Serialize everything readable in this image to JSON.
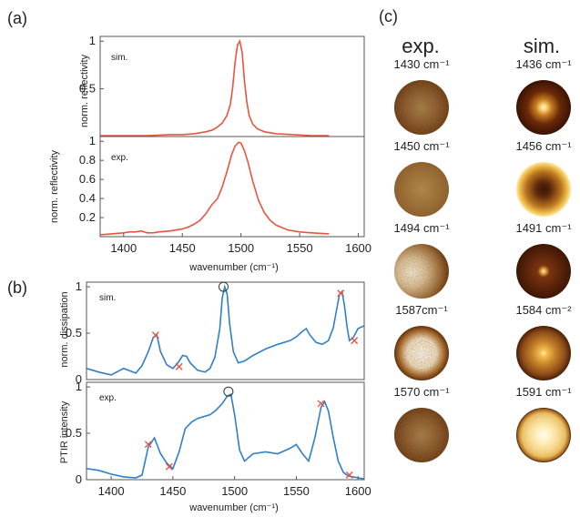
{
  "panel_labels": {
    "a": "(a)",
    "b": "(b)",
    "c": "(c)"
  },
  "colors": {
    "reflectivity": "#e8553f",
    "dissipation": "#2f7fc9",
    "marker": "#e8553f",
    "peak_marker": "#333333"
  },
  "chart_data": [
    {
      "id": "a-sim",
      "type": "line",
      "panel": "(a)",
      "series_label": "sim.",
      "ylabel": "norm. reflectivity",
      "xlim": [
        1380,
        1605
      ],
      "ylim": [
        0,
        1.05
      ],
      "yticks": [
        "0.5",
        "1"
      ],
      "yticks_values": [
        0.5,
        1
      ],
      "x": [
        1380,
        1400,
        1420,
        1440,
        1450,
        1460,
        1470,
        1476,
        1480,
        1484,
        1488,
        1491,
        1493,
        1495,
        1497,
        1499,
        1501,
        1503,
        1505,
        1507,
        1510,
        1514,
        1520,
        1530,
        1545,
        1560,
        1575
      ],
      "y": [
        0.01,
        0.01,
        0.01,
        0.02,
        0.02,
        0.03,
        0.05,
        0.07,
        0.1,
        0.14,
        0.22,
        0.34,
        0.52,
        0.78,
        0.96,
        1.0,
        0.88,
        0.58,
        0.36,
        0.22,
        0.13,
        0.08,
        0.05,
        0.03,
        0.02,
        0.01,
        0.01
      ]
    },
    {
      "id": "a-exp",
      "type": "line",
      "panel": "(a)",
      "series_label": "exp.",
      "ylabel": "norm. reflectivity",
      "xlabel": "wavenumber (cm⁻¹)",
      "xlim": [
        1380,
        1605
      ],
      "ylim": [
        0,
        1.05
      ],
      "xticks": [
        "1400",
        "1450",
        "1500",
        "1550",
        "1600"
      ],
      "xticks_values": [
        1400,
        1450,
        1500,
        1550,
        1600
      ],
      "yticks": [
        "0.2",
        "0.4",
        "0.6",
        "0.8",
        "1"
      ],
      "yticks_values": [
        0.2,
        0.4,
        0.6,
        0.8,
        1
      ],
      "x": [
        1380,
        1390,
        1400,
        1405,
        1410,
        1415,
        1420,
        1425,
        1430,
        1440,
        1450,
        1455,
        1460,
        1465,
        1470,
        1475,
        1480,
        1484,
        1488,
        1492,
        1495,
        1498,
        1500,
        1503,
        1506,
        1510,
        1515,
        1520,
        1525,
        1530,
        1540,
        1550,
        1560,
        1575
      ],
      "y": [
        0.02,
        0.03,
        0.04,
        0.05,
        0.05,
        0.06,
        0.04,
        0.04,
        0.05,
        0.06,
        0.08,
        0.1,
        0.13,
        0.17,
        0.24,
        0.33,
        0.4,
        0.52,
        0.68,
        0.86,
        0.95,
        0.99,
        0.98,
        0.9,
        0.78,
        0.58,
        0.38,
        0.25,
        0.17,
        0.12,
        0.07,
        0.05,
        0.04,
        0.03
      ]
    },
    {
      "id": "b-sim",
      "type": "line",
      "panel": "(b)",
      "series_label": "sim.",
      "ylabel": "norm. dissipation",
      "xlim": [
        1380,
        1605
      ],
      "ylim": [
        0,
        1.05
      ],
      "yticks": [
        "0",
        "0.5",
        "1"
      ],
      "yticks_values": [
        0,
        0.5,
        1
      ],
      "x": [
        1380,
        1390,
        1400,
        1410,
        1420,
        1425,
        1430,
        1434,
        1437,
        1440,
        1445,
        1450,
        1454,
        1458,
        1461,
        1464,
        1470,
        1476,
        1480,
        1484,
        1488,
        1490,
        1492,
        1494,
        1496,
        1499,
        1503,
        1508,
        1515,
        1525,
        1535,
        1545,
        1550,
        1555,
        1558,
        1561,
        1566,
        1571,
        1576,
        1580,
        1583,
        1585,
        1587,
        1589,
        1591,
        1593,
        1596,
        1600,
        1605
      ],
      "y": [
        0.12,
        0.08,
        0.05,
        0.12,
        0.07,
        0.15,
        0.3,
        0.45,
        0.48,
        0.3,
        0.16,
        0.12,
        0.18,
        0.26,
        0.25,
        0.18,
        0.1,
        0.08,
        0.12,
        0.24,
        0.55,
        0.88,
        1.0,
        0.92,
        0.6,
        0.3,
        0.18,
        0.2,
        0.26,
        0.33,
        0.38,
        0.42,
        0.46,
        0.52,
        0.55,
        0.48,
        0.4,
        0.38,
        0.42,
        0.56,
        0.78,
        0.92,
        0.95,
        0.8,
        0.58,
        0.42,
        0.45,
        0.55,
        0.58
      ],
      "markers_x": [
        1436,
        1455,
        1586,
        1597
      ],
      "markers_y": [
        0.48,
        0.14,
        0.93,
        0.42
      ],
      "peak_x": 1491,
      "peak_y": 1.0
    },
    {
      "id": "b-exp",
      "type": "line",
      "panel": "(b)",
      "series_label": "exp.",
      "ylabel": "PTIR intensity",
      "xlabel": "wavenumber (cm⁻¹)",
      "xlim": [
        1380,
        1605
      ],
      "ylim": [
        0,
        1.05
      ],
      "xticks": [
        "1400",
        "1450",
        "1500",
        "1550",
        "1600"
      ],
      "xticks_values": [
        1400,
        1450,
        1500,
        1550,
        1600
      ],
      "yticks": [
        "0",
        "0.5",
        "1"
      ],
      "yticks_values": [
        0,
        0.5,
        1
      ],
      "x": [
        1380,
        1390,
        1400,
        1410,
        1420,
        1425,
        1430,
        1435,
        1440,
        1445,
        1450,
        1455,
        1460,
        1465,
        1470,
        1475,
        1480,
        1485,
        1490,
        1494,
        1497,
        1500,
        1504,
        1508,
        1515,
        1525,
        1535,
        1545,
        1550,
        1555,
        1560,
        1565,
        1570,
        1573,
        1576,
        1580,
        1584,
        1588,
        1592,
        1596,
        1600,
        1605
      ],
      "y": [
        0.12,
        0.1,
        0.06,
        0.03,
        0.02,
        0.05,
        0.35,
        0.45,
        0.28,
        0.18,
        0.12,
        0.3,
        0.55,
        0.62,
        0.66,
        0.68,
        0.7,
        0.75,
        0.82,
        0.9,
        0.92,
        0.7,
        0.32,
        0.2,
        0.28,
        0.3,
        0.28,
        0.34,
        0.38,
        0.28,
        0.2,
        0.45,
        0.78,
        0.84,
        0.74,
        0.45,
        0.2,
        0.08,
        0.04,
        0.03,
        0.02,
        0.01
      ],
      "markers_x": [
        1430,
        1447,
        1570,
        1593
      ],
      "markers_y": [
        0.38,
        0.14,
        0.82,
        0.05
      ],
      "peak_x": 1495,
      "peak_y": 0.95
    }
  ],
  "panel_c": {
    "exp_title": "exp.",
    "sim_title": "sim.",
    "exp": [
      {
        "label": "1430 cm⁻¹",
        "pattern": "diffuse-center"
      },
      {
        "label": "1450 cm⁻¹",
        "pattern": "uniform-speckle"
      },
      {
        "label": "1494 cm⁻¹",
        "pattern": "bright-left"
      },
      {
        "label": "1587cm⁻¹",
        "pattern": "bright-center-dark-rim"
      },
      {
        "label": "1570 cm⁻¹",
        "pattern": "diffuse-center"
      }
    ],
    "sim": [
      {
        "label": "1436 cm⁻¹",
        "pattern": "bright-spot-dark-rim"
      },
      {
        "label": "1456 cm⁻¹",
        "pattern": "dark-center-bright-rim"
      },
      {
        "label": "1491 cm⁻¹",
        "pattern": "small-bright-spot"
      },
      {
        "label": "1584 cm⁻²",
        "pattern": "bright-spot-medium"
      },
      {
        "label": "1591 cm⁻¹",
        "pattern": "bright-rings"
      }
    ]
  }
}
